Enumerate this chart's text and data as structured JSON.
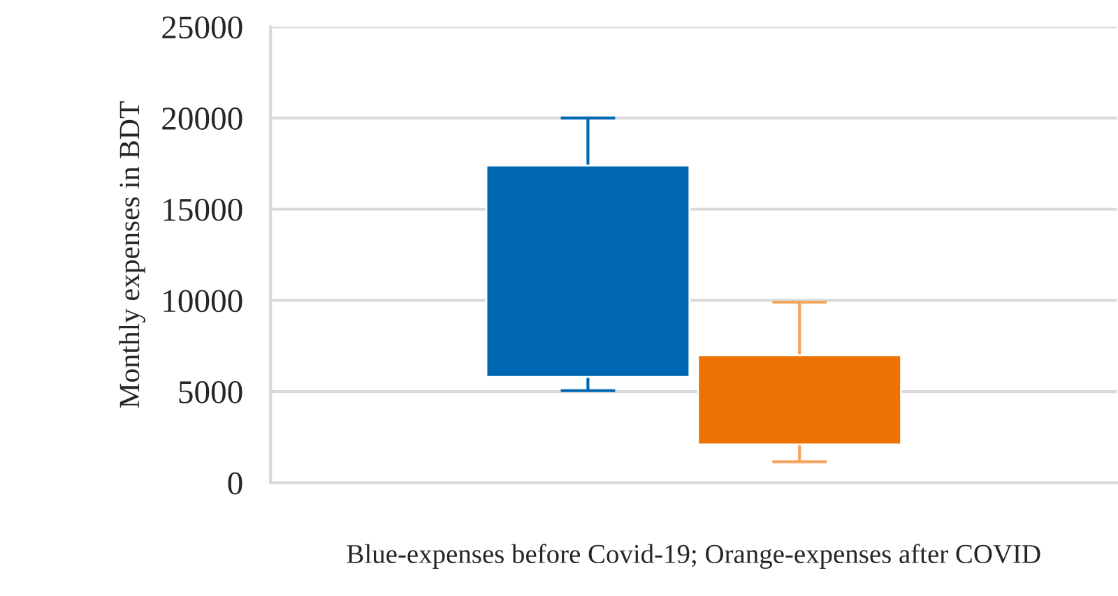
{
  "chart_data": {
    "type": "bar",
    "xlabel": "Blue-expenses before Covid-19; Orange-expenses after COVID",
    "ylabel": "Monthly expenses in BDT",
    "categories": [
      null
    ],
    "series": [
      {
        "color": "#0068b3",
        "base": [
          5800
        ],
        "values": [
          11600
        ],
        "errors": [
          [
            5050,
            20000
          ]
        ]
      },
      {
        "color": "#ee7203",
        "base": [
          2100
        ],
        "values": [
          4900
        ],
        "errors": [
          [
            1150,
            9900
          ]
        ]
      }
    ],
    "ylim": [
      0,
      25000
    ],
    "yticks": [
      0,
      5000,
      10000,
      15000,
      20000,
      25000
    ],
    "grid": "y",
    "legend": false
  }
}
